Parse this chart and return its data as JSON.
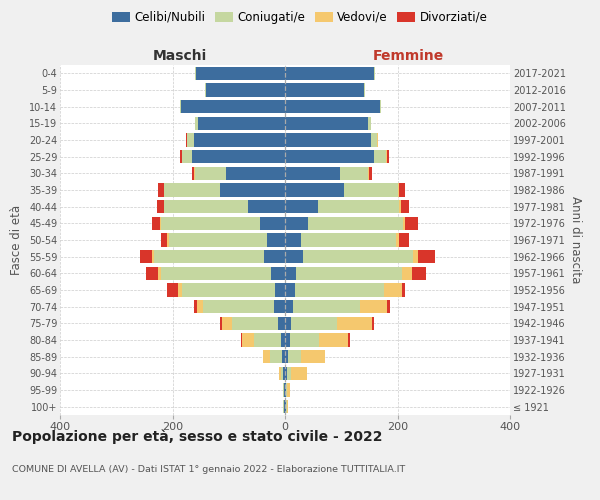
{
  "age_groups": [
    "100+",
    "95-99",
    "90-94",
    "85-89",
    "80-84",
    "75-79",
    "70-74",
    "65-69",
    "60-64",
    "55-59",
    "50-54",
    "45-49",
    "40-44",
    "35-39",
    "30-34",
    "25-29",
    "20-24",
    "15-19",
    "10-14",
    "5-9",
    "0-4"
  ],
  "birth_years": [
    "≤ 1921",
    "1922-1926",
    "1927-1931",
    "1932-1936",
    "1937-1941",
    "1942-1946",
    "1947-1951",
    "1952-1956",
    "1957-1961",
    "1962-1966",
    "1967-1971",
    "1972-1976",
    "1977-1981",
    "1982-1986",
    "1987-1991",
    "1992-1996",
    "1997-2001",
    "2002-2006",
    "2007-2011",
    "2012-2016",
    "2017-2021"
  ],
  "male": {
    "celibi": [
      2,
      2,
      3,
      5,
      8,
      12,
      20,
      18,
      25,
      38,
      32,
      45,
      65,
      115,
      105,
      165,
      162,
      155,
      185,
      140,
      158
    ],
    "coniugati": [
      1,
      2,
      5,
      22,
      48,
      82,
      125,
      165,
      195,
      195,
      175,
      175,
      150,
      100,
      55,
      18,
      12,
      5,
      2,
      2,
      2
    ],
    "vedovi": [
      0,
      0,
      3,
      12,
      20,
      18,
      12,
      8,
      5,
      3,
      2,
      2,
      1,
      1,
      1,
      1,
      1,
      0,
      0,
      0,
      0
    ],
    "divorziati": [
      0,
      0,
      0,
      0,
      2,
      3,
      4,
      18,
      22,
      22,
      12,
      15,
      12,
      10,
      5,
      2,
      1,
      0,
      0,
      0,
      0
    ]
  },
  "female": {
    "nubili": [
      2,
      1,
      3,
      5,
      8,
      10,
      15,
      18,
      20,
      32,
      28,
      40,
      58,
      105,
      98,
      158,
      152,
      148,
      168,
      140,
      158
    ],
    "coniugate": [
      1,
      2,
      8,
      24,
      52,
      82,
      118,
      158,
      188,
      195,
      170,
      170,
      145,
      95,
      50,
      22,
      12,
      5,
      2,
      2,
      2
    ],
    "vedove": [
      2,
      6,
      28,
      42,
      52,
      62,
      48,
      32,
      18,
      10,
      5,
      4,
      3,
      2,
      2,
      1,
      1,
      0,
      0,
      0,
      0
    ],
    "divorziate": [
      0,
      0,
      0,
      0,
      3,
      5,
      5,
      6,
      24,
      30,
      18,
      22,
      15,
      12,
      5,
      3,
      1,
      0,
      0,
      0,
      0
    ]
  },
  "colors": {
    "celibi": "#3d6d9e",
    "coniugati": "#c5d7a0",
    "vedovi": "#f5c86e",
    "divorziati": "#d9352a"
  },
  "xlim": 400,
  "title_main": "Popolazione per età, sesso e stato civile - 2022",
  "title_sub": "COMUNE DI AVELLA (AV) - Dati ISTAT 1° gennaio 2022 - Elaborazione TUTTITALIA.IT",
  "ylabel_left": "Fasce di età",
  "ylabel_right": "Anni di nascita",
  "header_male": "Maschi",
  "header_female": "Femmine",
  "legend_labels": [
    "Celibi/Nubili",
    "Coniugati/e",
    "Vedovi/e",
    "Divorziati/e"
  ],
  "bg_color": "#f0f0f0",
  "plot_bg": "#ffffff"
}
